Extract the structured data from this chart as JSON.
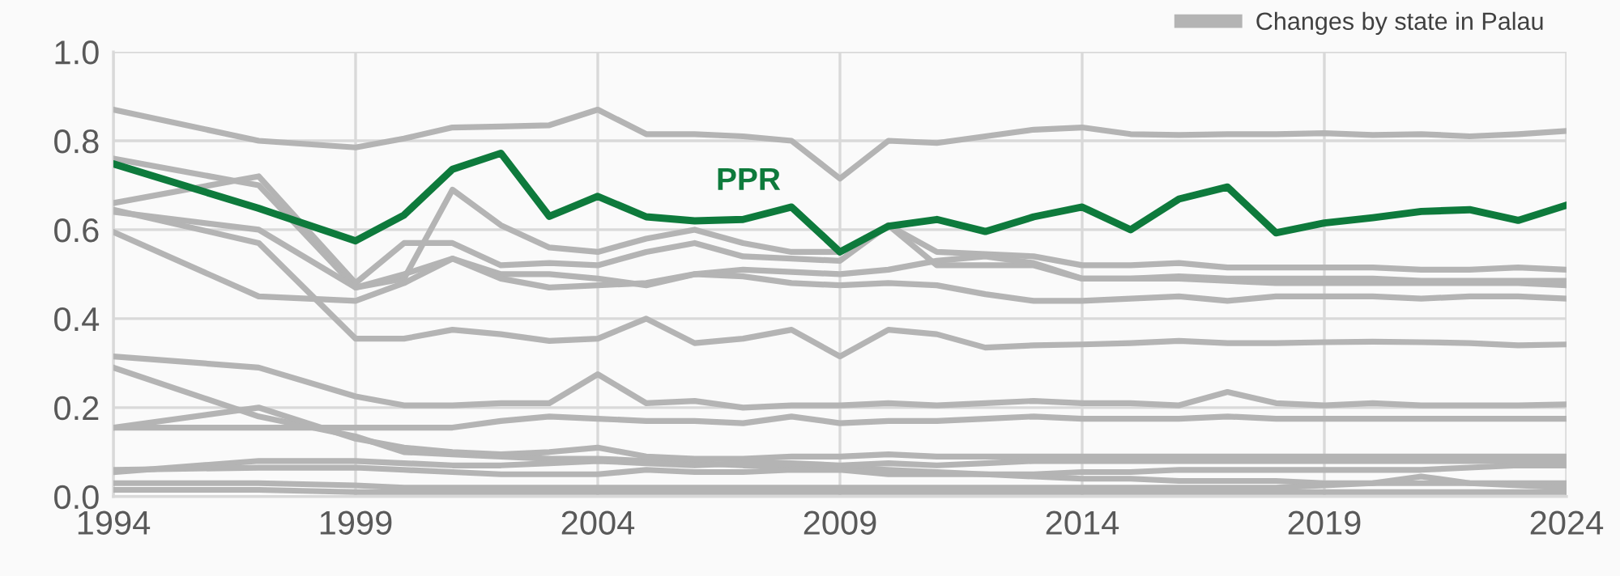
{
  "chart_data": {
    "type": "line",
    "x": [
      1994,
      1997,
      1999,
      2000,
      2001,
      2002,
      2003,
      2004,
      2005,
      2006,
      2007,
      2008,
      2009,
      2010,
      2011,
      2012,
      2013,
      2014,
      2015,
      2016,
      2017,
      2018,
      2019,
      2020,
      2021,
      2022,
      2023,
      2024
    ],
    "series": [
      {
        "name": "Changes by state in Palau",
        "color": "#b4b4b4",
        "values": [
          0.87,
          0.8,
          0.785,
          0.805,
          0.83,
          0.832,
          0.835,
          0.87,
          0.815,
          0.815,
          0.81,
          0.8,
          0.715,
          0.8,
          0.795,
          0.81,
          0.825,
          0.83,
          0.815,
          0.813,
          0.815,
          0.815,
          0.817,
          0.813,
          0.815,
          0.81,
          0.815,
          0.822
        ]
      },
      {
        "color": "#b4b4b4",
        "values": [
          0.76,
          0.7,
          0.47,
          0.49,
          0.69,
          0.61,
          0.56,
          0.55,
          0.58,
          0.6,
          0.57,
          0.55,
          0.55,
          0.61,
          0.55,
          0.545,
          0.54,
          0.52,
          0.52,
          0.525,
          0.515,
          0.515,
          0.515,
          0.515,
          0.51,
          0.51,
          0.515,
          0.51
        ]
      },
      {
        "color": "#b4b4b4",
        "values": [
          0.66,
          0.72,
          0.48,
          0.57,
          0.57,
          0.52,
          0.525,
          0.52,
          0.55,
          0.57,
          0.54,
          0.535,
          0.53,
          0.61,
          0.52,
          0.52,
          0.52,
          0.49,
          0.49,
          0.495,
          0.49,
          0.49,
          0.49,
          0.49,
          0.485,
          0.485,
          0.485,
          0.485
        ]
      },
      {
        "color": "#b4b4b4",
        "values": [
          0.64,
          0.6,
          0.47,
          0.5,
          0.535,
          0.5,
          0.5,
          0.49,
          0.475,
          0.5,
          0.51,
          0.505,
          0.5,
          0.51,
          0.53,
          0.54,
          0.525,
          0.49,
          0.49,
          0.49,
          0.485,
          0.48,
          0.48,
          0.48,
          0.48,
          0.48,
          0.48,
          0.475
        ]
      },
      {
        "color": "#b4b4b4",
        "values": [
          0.645,
          0.57,
          0.355,
          0.355,
          0.375,
          0.365,
          0.35,
          0.355,
          0.4,
          0.345,
          0.355,
          0.375,
          0.315,
          0.375,
          0.365,
          0.335,
          0.34,
          0.342,
          0.345,
          0.35,
          0.345,
          0.345,
          0.347,
          0.348,
          0.347,
          0.345,
          0.34,
          0.342
        ]
      },
      {
        "color": "#b4b4b4",
        "values": [
          0.595,
          0.45,
          0.44,
          0.48,
          0.535,
          0.49,
          0.47,
          0.475,
          0.48,
          0.5,
          0.495,
          0.48,
          0.475,
          0.48,
          0.475,
          0.455,
          0.44,
          0.44,
          0.445,
          0.45,
          0.44,
          0.45,
          0.45,
          0.45,
          0.445,
          0.45,
          0.45,
          0.445
        ]
      },
      {
        "color": "#b4b4b4",
        "values": [
          0.315,
          0.29,
          0.225,
          0.205,
          0.205,
          0.21,
          0.21,
          0.275,
          0.21,
          0.215,
          0.2,
          0.205,
          0.205,
          0.21,
          0.205,
          0.21,
          0.215,
          0.21,
          0.21,
          0.205,
          0.235,
          0.21,
          0.205,
          0.21,
          0.205,
          0.205,
          0.205,
          0.207
        ]
      },
      {
        "color": "#b4b4b4",
        "values": [
          0.29,
          0.18,
          0.135,
          0.1,
          0.095,
          0.09,
          0.085,
          0.085,
          0.08,
          0.075,
          0.07,
          0.07,
          0.065,
          0.06,
          0.055,
          0.05,
          0.045,
          0.04,
          0.04,
          0.035,
          0.035,
          0.035,
          0.03,
          0.03,
          0.03,
          0.03,
          0.03,
          0.03
        ]
      },
      {
        "color": "#b4b4b4",
        "values": [
          0.155,
          0.2,
          0.13,
          0.11,
          0.1,
          0.095,
          0.1,
          0.11,
          0.09,
          0.085,
          0.085,
          0.09,
          0.09,
          0.095,
          0.09,
          0.09,
          0.09,
          0.09,
          0.09,
          0.09,
          0.09,
          0.09,
          0.09,
          0.09,
          0.09,
          0.09,
          0.09,
          0.09
        ]
      },
      {
        "color": "#b4b4b4",
        "values": [
          0.155,
          0.155,
          0.155,
          0.155,
          0.155,
          0.17,
          0.18,
          0.175,
          0.17,
          0.17,
          0.165,
          0.18,
          0.165,
          0.17,
          0.17,
          0.175,
          0.18,
          0.175,
          0.175,
          0.175,
          0.18,
          0.175,
          0.175,
          0.175,
          0.175,
          0.175,
          0.175,
          0.175
        ]
      },
      {
        "color": "#b4b4b4",
        "values": [
          0.055,
          0.08,
          0.08,
          0.075,
          0.07,
          0.07,
          0.075,
          0.08,
          0.075,
          0.07,
          0.075,
          0.075,
          0.07,
          0.075,
          0.07,
          0.075,
          0.08,
          0.08,
          0.08,
          0.08,
          0.08,
          0.08,
          0.08,
          0.08,
          0.08,
          0.08,
          0.08,
          0.08
        ]
      },
      {
        "color": "#b4b4b4",
        "values": [
          0.06,
          0.065,
          0.065,
          0.06,
          0.055,
          0.05,
          0.05,
          0.05,
          0.06,
          0.055,
          0.055,
          0.06,
          0.06,
          0.05,
          0.05,
          0.05,
          0.05,
          0.055,
          0.055,
          0.06,
          0.06,
          0.06,
          0.06,
          0.06,
          0.06,
          0.065,
          0.07,
          0.07
        ]
      },
      {
        "color": "#b4b4b4",
        "values": [
          0.03,
          0.03,
          0.025,
          0.02,
          0.02,
          0.02,
          0.02,
          0.02,
          0.02,
          0.02,
          0.02,
          0.02,
          0.02,
          0.02,
          0.02,
          0.02,
          0.02,
          0.02,
          0.02,
          0.02,
          0.02,
          0.02,
          0.025,
          0.03,
          0.045,
          0.03,
          0.025,
          0.02
        ]
      },
      {
        "color": "#b4b4b4",
        "values": [
          0.015,
          0.015,
          0.01,
          0.01,
          0.01,
          0.01,
          0.01,
          0.01,
          0.01,
          0.01,
          0.01,
          0.01,
          0.01,
          0.01,
          0.01,
          0.01,
          0.01,
          0.01,
          0.01,
          0.01,
          0.01,
          0.01,
          0.01,
          0.01,
          0.01,
          0.01,
          0.01,
          0.01
        ]
      },
      {
        "color": "#0e7a3c",
        "values": [
          0.748,
          0.648,
          0.575,
          0.633,
          0.736,
          0.772,
          0.63,
          0.675,
          0.629,
          0.62,
          0.623,
          0.651,
          0.55,
          0.608,
          0.623,
          0.596,
          0.629,
          0.651,
          0.6,
          0.669,
          0.696,
          0.593,
          0.615,
          0.627,
          0.641,
          0.645,
          0.621,
          0.655
        ]
      }
    ],
    "annotations": [
      "PPR"
    ],
    "xlim": [
      1994,
      2024
    ],
    "xticks": [
      1994,
      1999,
      2004,
      2009,
      2014,
      2019,
      2024
    ],
    "ylim": [
      0,
      1
    ],
    "yticks": [
      {
        "value": 0,
        "label": "0.0"
      },
      {
        "value": 0.2,
        "label": "0.2"
      },
      {
        "value": 0.4,
        "label": "0.4"
      },
      {
        "value": 0.6,
        "label": "0.6"
      },
      {
        "value": 0.8,
        "label": "0.8"
      },
      {
        "value": 1,
        "label": "1.0"
      }
    ],
    "grid": true,
    "legend": "top right",
    "marker": "none",
    "line_style": "solid"
  }
}
